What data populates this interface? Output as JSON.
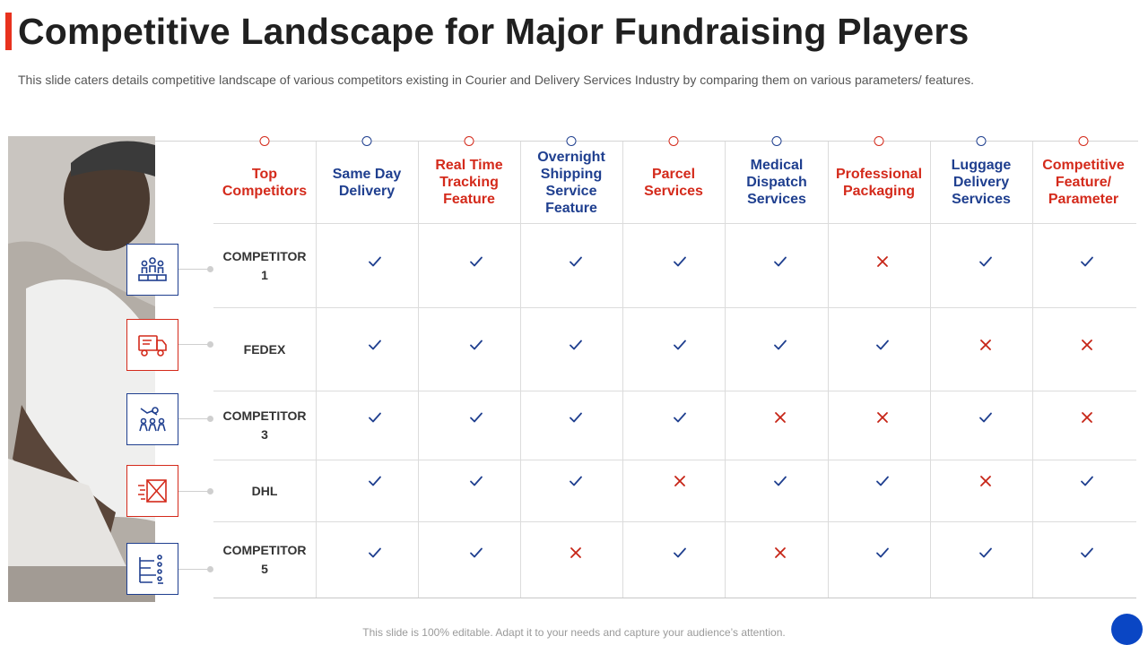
{
  "slide": {
    "title": "Competitive Landscape for Major Fundraising Players",
    "subtitle": "This slide caters details competitive landscape of various competitors existing in Courier and Delivery Services Industry by comparing them on various parameters/ features.",
    "footer": "This slide is 100% editable. Adapt it to your needs and capture your audience’s attention."
  },
  "colors": {
    "accent_red": "#d42a1b",
    "accent_blue": "#1f3f8f",
    "check_blue": "#1f3f8f",
    "cross_red": "#c62416",
    "corner_blue": "#0a46c4"
  },
  "table": {
    "columns": [
      {
        "label": "Top Competitors",
        "color": "red"
      },
      {
        "label": "Same Day Delivery",
        "color": "blue"
      },
      {
        "label": "Real Time Tracking Feature",
        "color": "red"
      },
      {
        "label": "Overnight Shipping Service Feature",
        "color": "blue"
      },
      {
        "label": "Parcel Services",
        "color": "red"
      },
      {
        "label": "Medical Dispatch Services",
        "color": "blue"
      },
      {
        "label": "Professional Packaging",
        "color": "red"
      },
      {
        "label": "Luggage Delivery Services",
        "color": "blue"
      },
      {
        "label": "Competitive Feature/ Parameter",
        "color": "red"
      }
    ],
    "rows": [
      {
        "name": "COMPETITOR 1",
        "icon": "people-podium-icon",
        "icon_color": "blue",
        "values": [
          true,
          true,
          true,
          true,
          true,
          false,
          true,
          true
        ]
      },
      {
        "name": "FEDEX",
        "icon": "delivery-truck-icon",
        "icon_color": "red",
        "values": [
          true,
          true,
          true,
          true,
          true,
          true,
          false,
          false
        ]
      },
      {
        "name": "COMPETITOR 3",
        "icon": "team-handshake-icon",
        "icon_color": "blue",
        "values": [
          true,
          true,
          true,
          true,
          false,
          false,
          true,
          false
        ]
      },
      {
        "name": "DHL",
        "icon": "fast-parcel-icon",
        "icon_color": "red",
        "values": [
          true,
          true,
          true,
          false,
          true,
          true,
          false,
          true
        ]
      },
      {
        "name": "COMPETITOR 5",
        "icon": "hierarchy-bars-icon",
        "icon_color": "blue",
        "values": [
          true,
          true,
          false,
          true,
          false,
          true,
          true,
          true
        ]
      }
    ]
  }
}
